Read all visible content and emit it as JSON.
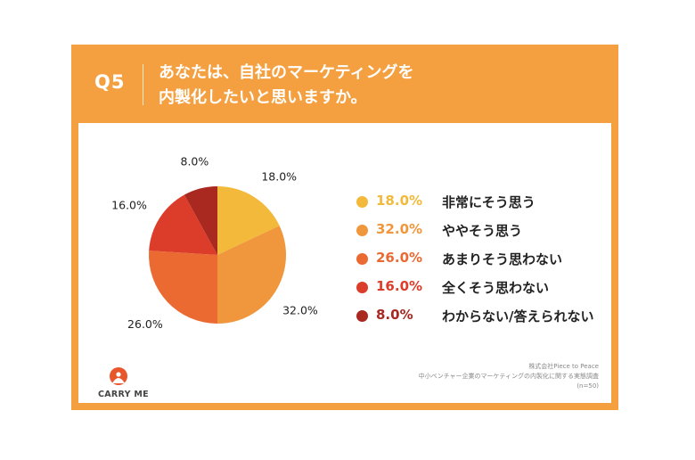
{
  "question": {
    "number": "Q5",
    "line1": "あなたは、自社のマーケティングを",
    "line2": "内製化したいと思いますか。"
  },
  "colors": {
    "frame": "#f5a040",
    "slices": [
      "#f2b93b",
      "#f0963c",
      "#ea6a32",
      "#dc3d2a",
      "#a9281f"
    ]
  },
  "chart_data": {
    "type": "pie",
    "categories": [
      "非常にそう思う",
      "ややそう思う",
      "あまりそう思わない",
      "全くそう思わない",
      "わからない/答えられない"
    ],
    "values": [
      18.0,
      32.0,
      26.0,
      16.0,
      8.0
    ],
    "labels": [
      "18.0%",
      "32.0%",
      "26.0%",
      "16.0%",
      "8.0%"
    ],
    "title": "",
    "legend_position": "right"
  },
  "logo": {
    "text": "CARRY ME"
  },
  "source": {
    "line1": "株式会社Piece to Peace",
    "line2": "中小ベンチャー企業のマーケティングの内製化に関する実態調査",
    "line3": "(n=50)"
  }
}
